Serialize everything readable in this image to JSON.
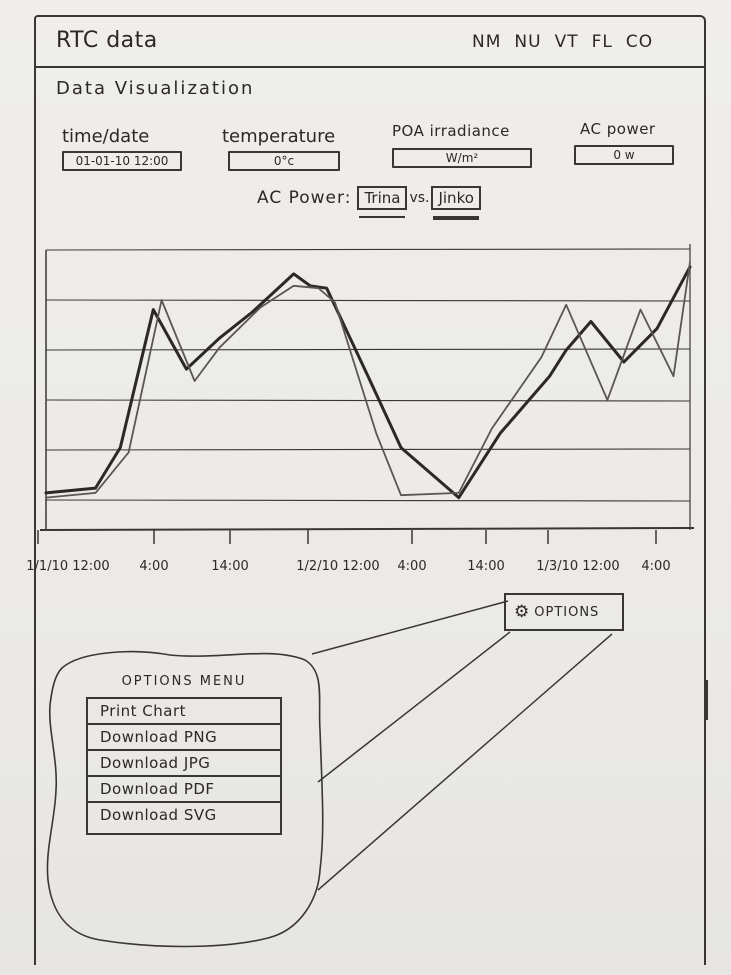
{
  "app": {
    "title": "RTC data"
  },
  "nav": {
    "items": [
      "NM",
      "NU",
      "VT",
      "FL",
      "CO"
    ]
  },
  "page": {
    "title": "Data Visualization"
  },
  "fields": [
    {
      "label": "time/date",
      "value": "01-01-10 12:00"
    },
    {
      "label": "temperature",
      "value": "0°c"
    },
    {
      "label": "POA irradiance",
      "value": "W/m²"
    },
    {
      "label": "AC power",
      "value": "0 w"
    }
  ],
  "comparison": {
    "label": "AC Power:",
    "left": "Trina",
    "vs": "vs.",
    "right": "Jinko"
  },
  "chart_data": {
    "type": "line",
    "title": "",
    "xlabel": "",
    "ylabel": "",
    "x_ticks": [
      "1/1/10 12:00",
      "4:00",
      "14:00",
      "1/2/10 12:00",
      "4:00",
      "14:00",
      "1/3/10 12:00",
      "4:00"
    ],
    "gridlines": 6,
    "grid": true,
    "series": [
      {
        "color": "#2b2826",
        "x": [
          0,
          0.6,
          0.9,
          1.3,
          1.7,
          2.1,
          2.5,
          3.0,
          3.2,
          3.4,
          3.9,
          4.3,
          5.0,
          5.5,
          6.1,
          6.3,
          6.6,
          7.0,
          7.4,
          7.8
        ],
        "y": [
          0.03,
          0.05,
          0.22,
          0.8,
          0.55,
          0.68,
          0.79,
          0.95,
          0.9,
          0.89,
          0.52,
          0.22,
          0.01,
          0.28,
          0.52,
          0.63,
          0.75,
          0.58,
          0.72,
          0.98
        ]
      },
      {
        "color": "#5a5653",
        "x": [
          0,
          0.6,
          1.0,
          1.4,
          1.8,
          2.1,
          2.6,
          3.0,
          3.3,
          3.5,
          4.0,
          4.3,
          5.0,
          5.4,
          6.0,
          6.3,
          6.8,
          7.2,
          7.6,
          7.8
        ],
        "y": [
          0.01,
          0.03,
          0.2,
          0.84,
          0.5,
          0.64,
          0.81,
          0.9,
          0.89,
          0.83,
          0.28,
          0.02,
          0.03,
          0.3,
          0.6,
          0.82,
          0.42,
          0.8,
          0.52,
          1.0
        ]
      }
    ]
  },
  "options_button": {
    "label": "OPTIONS",
    "icon": "gear-icon"
  },
  "options_menu": {
    "title": "OPTIONS MENU",
    "items": [
      "Print Chart",
      "Download PNG",
      "Download JPG",
      "Download PDF",
      "Download SVG"
    ]
  }
}
